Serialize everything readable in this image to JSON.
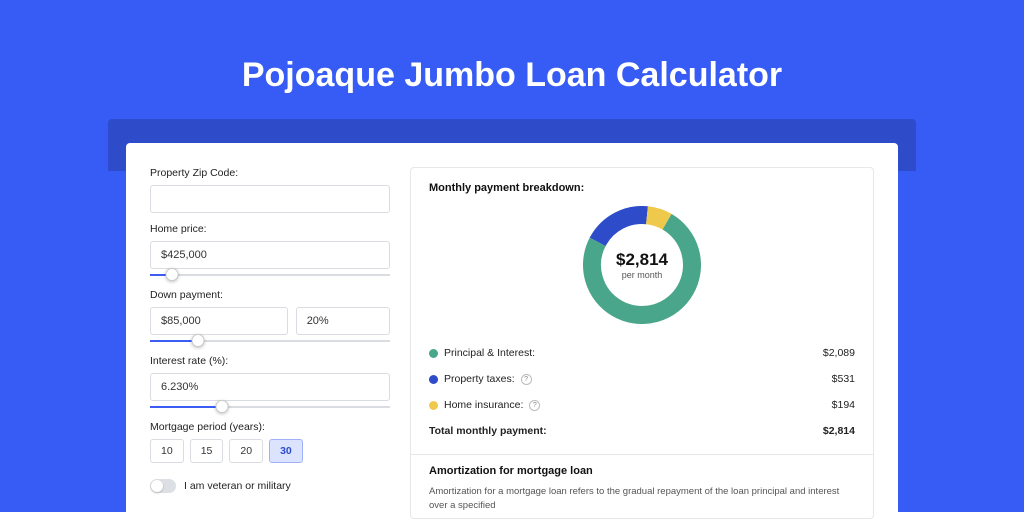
{
  "page": {
    "title": "Pojoaque Jumbo Loan Calculator",
    "colors": {
      "outer_bg": "#375cf5",
      "darkbar_bg": "#2e4cc9",
      "card_bg": "#ffffff",
      "accent": "#3b5cf5"
    }
  },
  "form": {
    "zip": {
      "label": "Property Zip Code:",
      "value": ""
    },
    "home_price": {
      "label": "Home price:",
      "value": "$425,000",
      "slider_pct": 9
    },
    "down_payment": {
      "label": "Down payment:",
      "amount": "$85,000",
      "percent": "20%",
      "slider_pct": 20
    },
    "interest_rate": {
      "label": "Interest rate (%):",
      "value": "6.230%",
      "slider_pct": 30
    },
    "mortgage_period": {
      "label": "Mortgage period (years):",
      "options": [
        "10",
        "15",
        "20",
        "30"
      ],
      "selected": "30"
    },
    "veteran": {
      "label": "I am veteran or military",
      "checked": false
    }
  },
  "breakdown": {
    "title": "Monthly payment breakdown:",
    "donut": {
      "amount": "$2,814",
      "sub": "per month",
      "size": 118,
      "stroke_width": 18,
      "bg_color": "#ffffff",
      "segments": [
        {
          "color": "#4aa68a",
          "pct": 74.2
        },
        {
          "color": "#2e4cc9",
          "pct": 18.9
        },
        {
          "color": "#efc94c",
          "pct": 6.9
        }
      ],
      "rotation_deg": -60
    },
    "legend": {
      "items": [
        {
          "label": "Principal & Interest:",
          "value": "$2,089",
          "color": "#4aa68a",
          "help": false
        },
        {
          "label": "Property taxes:",
          "value": "$531",
          "color": "#2e4cc9",
          "help": true
        },
        {
          "label": "Home insurance:",
          "value": "$194",
          "color": "#efc94c",
          "help": true
        }
      ],
      "total_label": "Total monthly payment:",
      "total_value": "$2,814"
    }
  },
  "amortization": {
    "title": "Amortization for mortgage loan",
    "text": "Amortization for a mortgage loan refers to the gradual repayment of the loan principal and interest over a specified"
  }
}
